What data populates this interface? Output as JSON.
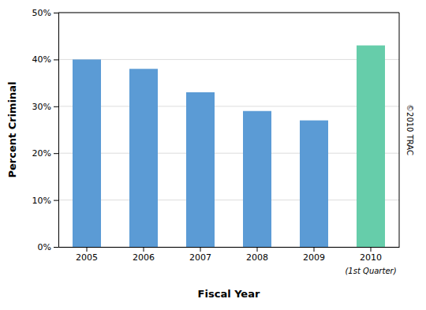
{
  "chart_data": {
    "type": "bar",
    "categories": [
      "2005",
      "2006",
      "2007",
      "2008",
      "2009",
      "2010"
    ],
    "values": [
      40.0,
      38.0,
      33.0,
      29.0,
      27.0,
      43.0
    ],
    "colors": [
      "#5B9BD5",
      "#5B9BD5",
      "#5B9BD5",
      "#5B9BD5",
      "#5B9BD5",
      "#66CDAA"
    ],
    "xlabel": "Fiscal Year",
    "ylabel": "Percent Criminal",
    "ylim": [
      0,
      50
    ],
    "yticks": [
      {
        "value": 0,
        "label": "0%"
      },
      {
        "value": 10,
        "label": "10%"
      },
      {
        "value": 20,
        "label": "20%"
      },
      {
        "value": 30,
        "label": "30%"
      },
      {
        "value": 40,
        "label": "40%"
      },
      {
        "value": 50,
        "label": "50%"
      }
    ],
    "grid": true,
    "annotations": [
      {
        "text": "(1st Quarter)",
        "x": "2010"
      },
      {
        "text": "©2010 TRAC"
      }
    ]
  }
}
